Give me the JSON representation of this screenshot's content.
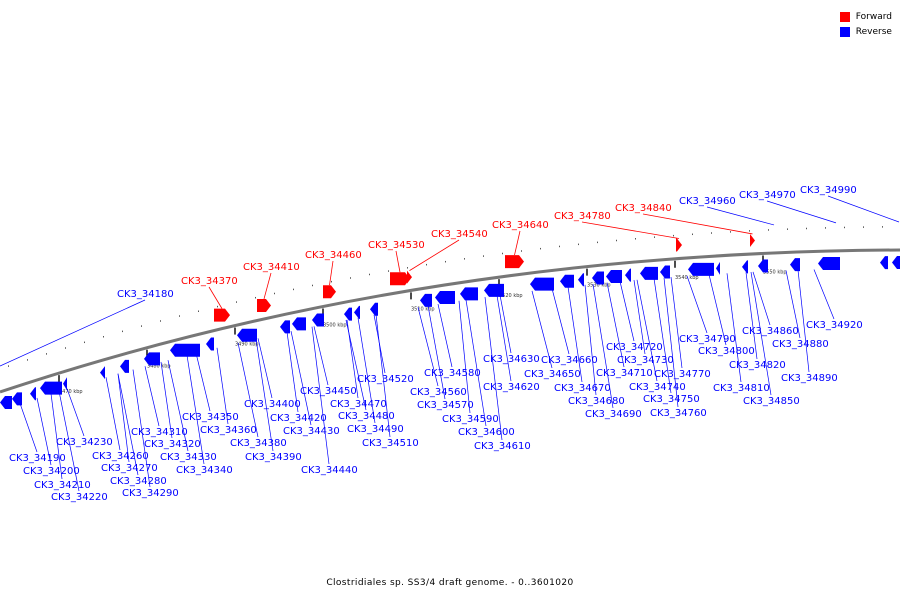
{
  "legend": {
    "forward_label": "Forward",
    "forward_color": "#ff0000",
    "reverse_label": "Reverse",
    "reverse_color": "#0000ff"
  },
  "caption": "Clostridiales sp. SS3/4 draft genome. - 0..3601020",
  "axis": {
    "start_kbp": 3465,
    "end_kbp": 3555,
    "tick_step_kbp": 10,
    "tick_labels": [
      "3470 kbp",
      "3480 kbp",
      "3490 kbp",
      "3500 kbp",
      "3510 kbp",
      "3520 kbp",
      "3530 kbp",
      "3540 kbp",
      "3550 kbp"
    ]
  },
  "forward_genes": [
    "CK3_34370",
    "CK3_34410",
    "CK3_34460",
    "CK3_34530",
    "CK3_34540",
    "CK3_34640",
    "CK3_34780",
    "CK3_34840"
  ],
  "reverse_genes": [
    "CK3_34180",
    "CK3_34190",
    "CK3_34200",
    "CK3_34210",
    "CK3_34220",
    "CK3_34230",
    "CK3_34260",
    "CK3_34270",
    "CK3_34280",
    "CK3_34290",
    "CK3_34310",
    "CK3_34320",
    "CK3_34330",
    "CK3_34340",
    "CK3_34350",
    "CK3_34360",
    "CK3_34380",
    "CK3_34390",
    "CK3_34400",
    "CK3_34420",
    "CK3_34430",
    "CK3_34440",
    "CK3_34450",
    "CK3_34470",
    "CK3_34480",
    "CK3_34490",
    "CK3_34510",
    "CK3_34520",
    "CK3_34560",
    "CK3_34570",
    "CK3_34580",
    "CK3_34590",
    "CK3_34600",
    "CK3_34610",
    "CK3_34620",
    "CK3_34630",
    "CK3_34650",
    "CK3_34660",
    "CK3_34670",
    "CK3_34680",
    "CK3_34690",
    "CK3_34710",
    "CK3_34720",
    "CK3_34730",
    "CK3_34740",
    "CK3_34750",
    "CK3_34760",
    "CK3_34770",
    "CK3_34790",
    "CK3_34800",
    "CK3_34810",
    "CK3_34820",
    "CK3_34850",
    "CK3_34860",
    "CK3_34880",
    "CK3_34890",
    "CK3_34920",
    "CK3_34960",
    "CK3_34970",
    "CK3_34990"
  ]
}
